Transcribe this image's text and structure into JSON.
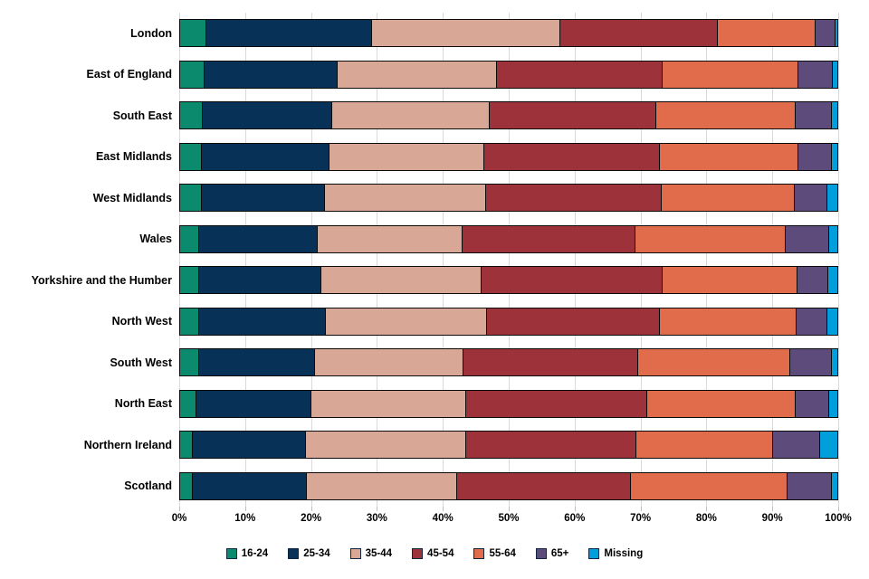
{
  "chart_data": {
    "type": "bar",
    "orientation": "horizontal",
    "stacked": true,
    "title": "",
    "xlabel": "",
    "ylabel": "",
    "unit": "percent",
    "xlim": [
      0,
      100
    ],
    "x_ticks": [
      "0%",
      "10%",
      "20%",
      "30%",
      "40%",
      "50%",
      "60%",
      "70%",
      "80%",
      "90%",
      "100%"
    ],
    "grid": "vertical",
    "legend_position": "bottom",
    "categories": [
      "London",
      "East of England",
      "South East",
      "East Midlands",
      "West Midlands",
      "Wales",
      "Yorkshire and the Humber",
      "North West",
      "South West",
      "North East",
      "Northern Ireland",
      "Scotland"
    ],
    "series": [
      {
        "name": "16-24",
        "color": "#0b8a6e",
        "values": [
          4.1,
          3.9,
          3.6,
          3.4,
          3.4,
          3.0,
          3.0,
          3.0,
          3.0,
          2.6,
          2.1,
          2.1
        ]
      },
      {
        "name": "25-34",
        "color": "#083158",
        "values": [
          25.1,
          20.1,
          19.6,
          19.4,
          18.7,
          18.0,
          18.5,
          19.2,
          17.6,
          17.5,
          17.1,
          17.3
        ]
      },
      {
        "name": "35-44",
        "color": "#d9a795",
        "values": [
          28.7,
          24.2,
          23.9,
          23.5,
          24.4,
          22.0,
          24.4,
          24.5,
          22.6,
          23.4,
          24.3,
          22.8
        ]
      },
      {
        "name": "45-54",
        "color": "#9e323b",
        "values": [
          23.8,
          25.2,
          25.3,
          26.7,
          26.7,
          26.2,
          27.5,
          26.3,
          26.5,
          27.5,
          25.9,
          26.3
        ]
      },
      {
        "name": "55-64",
        "color": "#e06c4c",
        "values": [
          14.9,
          20.6,
          21.1,
          20.9,
          20.2,
          22.8,
          20.4,
          20.7,
          23.0,
          22.5,
          20.7,
          23.8
        ]
      },
      {
        "name": "65+",
        "color": "#5d4b7c",
        "values": [
          3.0,
          5.2,
          5.5,
          5.1,
          5.0,
          6.6,
          4.7,
          4.7,
          6.3,
          5.2,
          7.2,
          6.8
        ]
      },
      {
        "name": "Missing",
        "color": "#009fdb",
        "values": [
          0.4,
          0.8,
          1.0,
          1.0,
          1.6,
          1.4,
          1.5,
          1.6,
          1.0,
          1.3,
          2.7,
          0.9
        ]
      }
    ],
    "colors": {
      "gridline": "#d9d9d9",
      "tick": "#bfbfbf",
      "bar_border": "#0a0a0a",
      "text": "#000000",
      "background": "#ffffff"
    }
  }
}
